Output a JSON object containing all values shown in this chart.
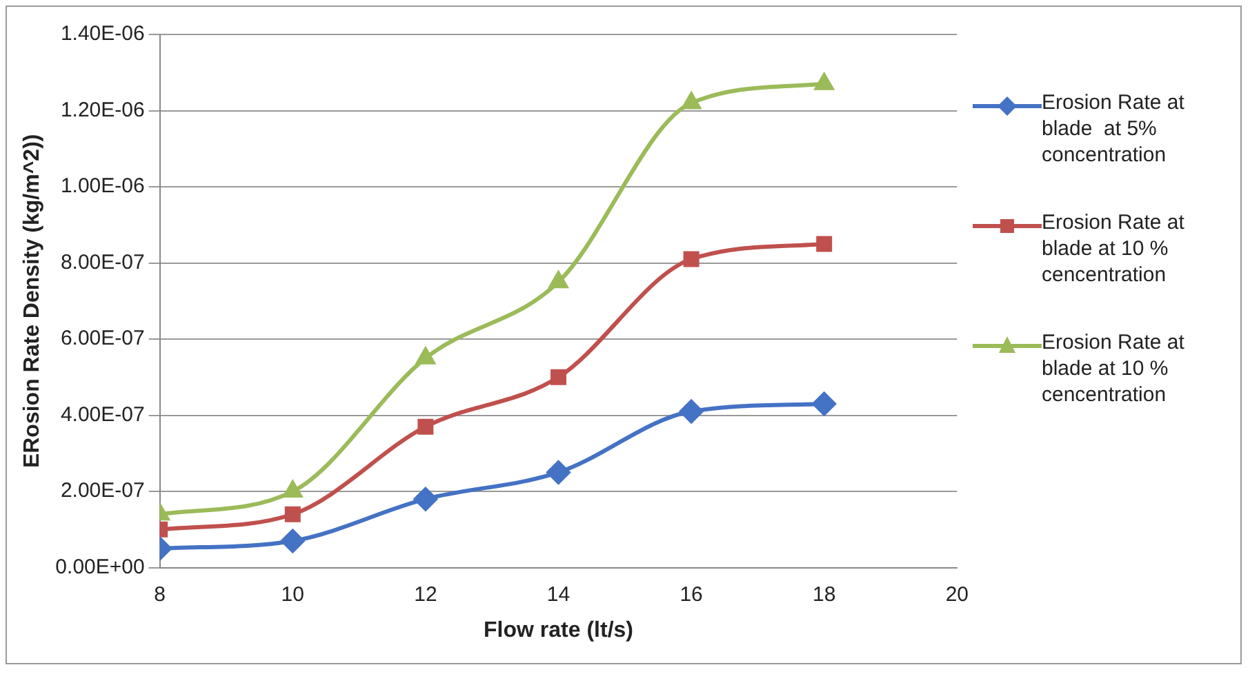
{
  "chart_data": {
    "type": "line",
    "xlabel": "Flow rate (lt/s)",
    "ylabel": "ERosion Rate Density (kg/m^2))",
    "x": [
      8,
      10,
      12,
      14,
      16,
      18
    ],
    "series": [
      {
        "name": "Erosion Rate at blade  at 5% concentration",
        "color": "#4472c4",
        "marker": "diamond",
        "values": [
          5e-08,
          7e-08,
          1.8e-07,
          2.5e-07,
          4.1e-07,
          4.3e-07
        ]
      },
      {
        "name": "Erosion Rate at blade at 10 % cencentration",
        "color": "#c0504d",
        "marker": "square",
        "values": [
          1e-07,
          1.4e-07,
          3.7e-07,
          5e-07,
          8.1e-07,
          8.5e-07
        ]
      },
      {
        "name": "Erosion Rate at blade at 10 % cencentration",
        "color": "#9bbb59",
        "marker": "triangle",
        "values": [
          1.4e-07,
          2e-07,
          5.5e-07,
          7.5e-07,
          1.22e-06,
          1.27e-06
        ]
      }
    ],
    "xlim": [
      8,
      20
    ],
    "xticks": [
      8,
      10,
      12,
      14,
      16,
      18,
      20
    ],
    "ylim": [
      0,
      1.4e-06
    ],
    "yticks": [
      {
        "value": 0,
        "label": "0.00E+00"
      },
      {
        "value": 2e-07,
        "label": "2.00E-07"
      },
      {
        "value": 4e-07,
        "label": "4.00E-07"
      },
      {
        "value": 6e-07,
        "label": "6.00E-07"
      },
      {
        "value": 8e-07,
        "label": "8.00E-07"
      },
      {
        "value": 1e-06,
        "label": "1.00E-06"
      },
      {
        "value": 1.2e-06,
        "label": "1.20E-06"
      },
      {
        "value": 1.4e-06,
        "label": "1.40E-06"
      }
    ],
    "grid": "y",
    "legend": "right",
    "line_style": "solid"
  }
}
